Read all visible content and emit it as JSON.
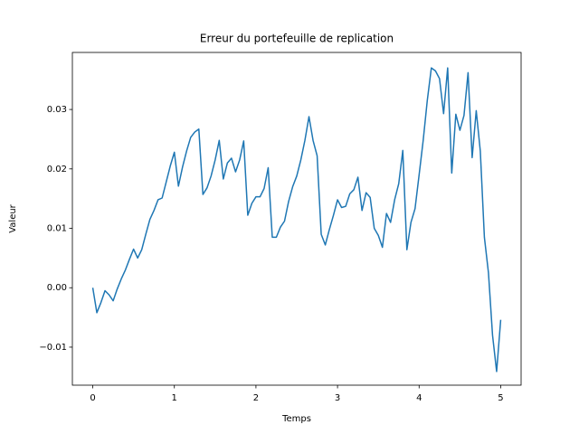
{
  "chart_data": {
    "type": "line",
    "title": "Erreur du portefeuille de replication",
    "xlabel": "Temps",
    "ylabel": "Valeur",
    "x": [
      0,
      0.05,
      0.1,
      0.15,
      0.2,
      0.25,
      0.3,
      0.35,
      0.4,
      0.45,
      0.5,
      0.55,
      0.6,
      0.65,
      0.7,
      0.75,
      0.8,
      0.85,
      0.9,
      0.95,
      1,
      1.05,
      1.1,
      1.15,
      1.2,
      1.25,
      1.3,
      1.35,
      1.4,
      1.45,
      1.5,
      1.55,
      1.6,
      1.65,
      1.7,
      1.75,
      1.8,
      1.85,
      1.9,
      1.95,
      2,
      2.05,
      2.1,
      2.15,
      2.2,
      2.25,
      2.3,
      2.35,
      2.4,
      2.45,
      2.5,
      2.55,
      2.6,
      2.65,
      2.7,
      2.75,
      2.8,
      2.85,
      2.9,
      2.95,
      3,
      3.05,
      3.1,
      3.15,
      3.2,
      3.25,
      3.3,
      3.35,
      3.4,
      3.45,
      3.5,
      3.55,
      3.6,
      3.65,
      3.7,
      3.75,
      3.8,
      3.85,
      3.9,
      3.95,
      4,
      4.05,
      4.1,
      4.15,
      4.2,
      4.25,
      4.3,
      4.35,
      4.4,
      4.45,
      4.5,
      4.55,
      4.6,
      4.65,
      4.7,
      4.75,
      4.8,
      4.85,
      4.9,
      4.95,
      5
    ],
    "series": [
      {
        "name": "Erreur",
        "color": "#1f77b4",
        "values": [
          0,
          -0.0042,
          -0.0025,
          -0.0005,
          -0.0012,
          -0.0022,
          -0.0002,
          0.0015,
          0.003,
          0.0048,
          0.0065,
          0.005,
          0.0064,
          0.009,
          0.0115,
          0.013,
          0.0148,
          0.0151,
          0.0178,
          0.0205,
          0.0228,
          0.0171,
          0.0203,
          0.023,
          0.0253,
          0.0262,
          0.0267,
          0.0157,
          0.0168,
          0.0188,
          0.0215,
          0.0248,
          0.0183,
          0.021,
          0.0218,
          0.0195,
          0.0215,
          0.0247,
          0.0122,
          0.0142,
          0.0153,
          0.0153,
          0.0167,
          0.0202,
          0.0085,
          0.0085,
          0.0102,
          0.0112,
          0.0145,
          0.017,
          0.0188,
          0.0215,
          0.0248,
          0.0288,
          0.0248,
          0.0222,
          0.009,
          0.0072,
          0.0098,
          0.0122,
          0.0148,
          0.0135,
          0.0137,
          0.0158,
          0.0165,
          0.0186,
          0.013,
          0.016,
          0.0152,
          0.01,
          0.0088,
          0.0068,
          0.0125,
          0.011,
          0.0148,
          0.0175,
          0.0231,
          0.0064,
          0.011,
          0.0133,
          0.019,
          0.0248,
          0.0315,
          0.037,
          0.0365,
          0.0352,
          0.0293,
          0.037,
          0.0193,
          0.0292,
          0.0265,
          0.029,
          0.0362,
          0.0219,
          0.0298,
          0.023,
          0.0085,
          0.0025,
          -0.008,
          -0.0141,
          -0.0054
        ]
      }
    ],
    "xlim": [
      -0.25,
      5.25
    ],
    "xticks": [
      0,
      1,
      2,
      3,
      4,
      5
    ],
    "ylim": [
      -0.0164,
      0.0396
    ],
    "yticks": [
      {
        "value": -0.01,
        "label": "−0.01"
      },
      {
        "value": 0,
        "label": "0.00"
      },
      0.01,
      0.02,
      0.03
    ]
  }
}
